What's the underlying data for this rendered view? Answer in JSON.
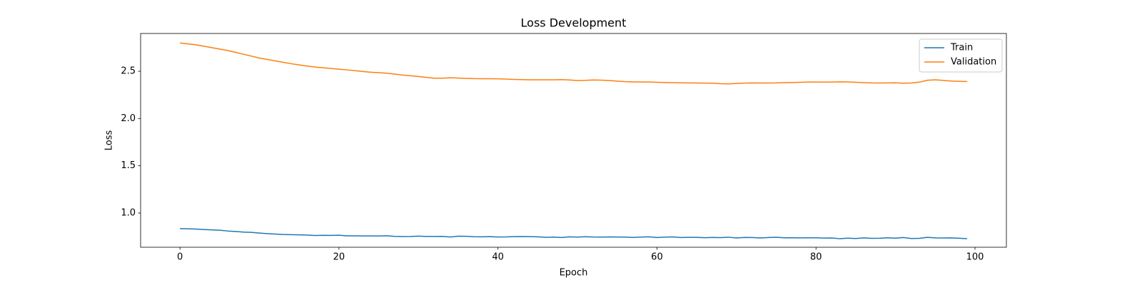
{
  "chart_data": {
    "type": "line",
    "title": "Loss Development",
    "xlabel": "Epoch",
    "ylabel": "Loss",
    "x": [
      0,
      1,
      2,
      3,
      4,
      5,
      6,
      7,
      8,
      9,
      10,
      11,
      12,
      13,
      14,
      15,
      16,
      17,
      18,
      19,
      20,
      21,
      22,
      23,
      24,
      25,
      26,
      27,
      28,
      29,
      30,
      31,
      32,
      33,
      34,
      35,
      36,
      37,
      38,
      39,
      40,
      41,
      42,
      43,
      44,
      45,
      46,
      47,
      48,
      49,
      50,
      51,
      52,
      53,
      54,
      55,
      56,
      57,
      58,
      59,
      60,
      61,
      62,
      63,
      64,
      65,
      66,
      67,
      68,
      69,
      70,
      71,
      72,
      73,
      74,
      75,
      76,
      77,
      78,
      79,
      80,
      81,
      82,
      83,
      84,
      85,
      86,
      87,
      88,
      89,
      90,
      91,
      92,
      93,
      94,
      95,
      96,
      97,
      98,
      99
    ],
    "series": [
      {
        "name": "Train",
        "color": "#1f77b4",
        "values": [
          0.835,
          0.833,
          0.83,
          0.826,
          0.822,
          0.818,
          0.81,
          0.805,
          0.798,
          0.795,
          0.788,
          0.782,
          0.777,
          0.773,
          0.771,
          0.769,
          0.767,
          0.762,
          0.764,
          0.763,
          0.765,
          0.759,
          0.759,
          0.758,
          0.758,
          0.757,
          0.76,
          0.753,
          0.751,
          0.752,
          0.756,
          0.752,
          0.752,
          0.753,
          0.746,
          0.755,
          0.754,
          0.749,
          0.748,
          0.75,
          0.746,
          0.747,
          0.75,
          0.751,
          0.75,
          0.748,
          0.743,
          0.745,
          0.741,
          0.748,
          0.745,
          0.749,
          0.746,
          0.745,
          0.747,
          0.746,
          0.745,
          0.742,
          0.745,
          0.748,
          0.741,
          0.745,
          0.747,
          0.741,
          0.743,
          0.743,
          0.739,
          0.742,
          0.74,
          0.744,
          0.736,
          0.742,
          0.741,
          0.736,
          0.741,
          0.744,
          0.738,
          0.739,
          0.737,
          0.738,
          0.738,
          0.735,
          0.736,
          0.728,
          0.734,
          0.73,
          0.737,
          0.732,
          0.733,
          0.738,
          0.734,
          0.741,
          0.73,
          0.732,
          0.743,
          0.737,
          0.736,
          0.737,
          0.733,
          0.728
        ]
      },
      {
        "name": "Validation",
        "color": "#ff7f0e",
        "values": [
          2.8,
          2.79,
          2.78,
          2.765,
          2.75,
          2.735,
          2.72,
          2.7,
          2.68,
          2.66,
          2.64,
          2.625,
          2.61,
          2.595,
          2.58,
          2.567,
          2.555,
          2.545,
          2.537,
          2.53,
          2.522,
          2.515,
          2.507,
          2.498,
          2.49,
          2.485,
          2.48,
          2.47,
          2.46,
          2.452,
          2.445,
          2.435,
          2.427,
          2.427,
          2.432,
          2.428,
          2.425,
          2.422,
          2.421,
          2.421,
          2.42,
          2.417,
          2.414,
          2.412,
          2.41,
          2.41,
          2.41,
          2.41,
          2.412,
          2.408,
          2.402,
          2.404,
          2.408,
          2.406,
          2.402,
          2.396,
          2.39,
          2.387,
          2.387,
          2.386,
          2.384,
          2.382,
          2.38,
          2.378,
          2.377,
          2.376,
          2.375,
          2.374,
          2.368,
          2.367,
          2.371,
          2.375,
          2.377,
          2.376,
          2.376,
          2.377,
          2.38,
          2.382,
          2.384,
          2.386,
          2.386,
          2.385,
          2.386,
          2.388,
          2.387,
          2.384,
          2.38,
          2.377,
          2.376,
          2.377,
          2.378,
          2.374,
          2.376,
          2.385,
          2.405,
          2.41,
          2.403,
          2.397,
          2.394,
          2.392
        ]
      }
    ],
    "xlim": [
      -4.95,
      103.95
    ],
    "ylim": [
      0.638,
      2.9
    ],
    "xticks": [
      0,
      20,
      40,
      60,
      80,
      100
    ],
    "yticks": [
      {
        "value": 1,
        "label": "1.0"
      },
      1.5,
      {
        "value": 2,
        "label": "2.0"
      },
      2.5
    ],
    "legend": "upper right",
    "grid": false
  }
}
